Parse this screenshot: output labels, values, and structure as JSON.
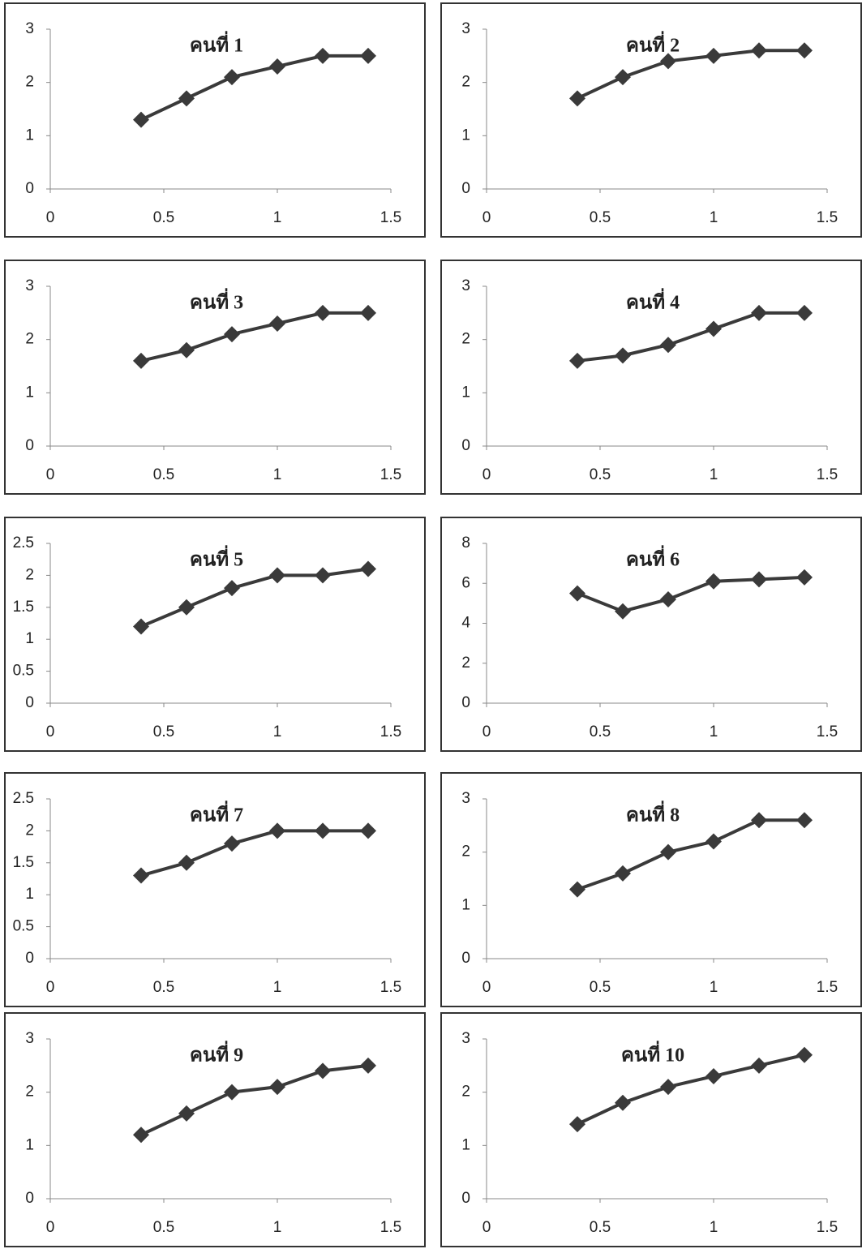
{
  "chart_data": [
    {
      "type": "line",
      "title": "คนที่ 1",
      "x": [
        0.4,
        0.6,
        0.8,
        1,
        1.2,
        1.4
      ],
      "values": [
        1.3,
        1.7,
        2.1,
        2.3,
        2.5,
        2.5
      ],
      "color": "#3a3a3a",
      "xlim": [
        0,
        1.5
      ],
      "xticks": [
        0,
        0.5,
        1,
        1.5
      ],
      "ylim": [
        0,
        3
      ],
      "yticks": [
        0,
        1,
        2,
        3
      ]
    },
    {
      "type": "line",
      "title": "คนที่ 2",
      "x": [
        0.4,
        0.6,
        0.8,
        1,
        1.2,
        1.4
      ],
      "values": [
        1.7,
        2.1,
        2.4,
        2.5,
        2.6,
        2.6
      ],
      "color": "#3a3a3a",
      "xlim": [
        0,
        1.5
      ],
      "xticks": [
        0,
        0.5,
        1,
        1.5
      ],
      "ylim": [
        0,
        3
      ],
      "yticks": [
        0,
        1,
        2,
        3
      ]
    },
    {
      "type": "line",
      "title": "คนที่ 3",
      "x": [
        0.4,
        0.6,
        0.8,
        1,
        1.2,
        1.4
      ],
      "values": [
        1.6,
        1.8,
        2.1,
        2.3,
        2.5,
        2.5
      ],
      "color": "#3a3a3a",
      "xlim": [
        0,
        1.5
      ],
      "xticks": [
        0,
        0.5,
        1,
        1.5
      ],
      "ylim": [
        0,
        3
      ],
      "yticks": [
        0,
        1,
        2,
        3
      ]
    },
    {
      "type": "line",
      "title": "คนที่ 4",
      "x": [
        0.4,
        0.6,
        0.8,
        1,
        1.2,
        1.4
      ],
      "values": [
        1.6,
        1.7,
        1.9,
        2.2,
        2.5,
        2.5
      ],
      "color": "#3a3a3a",
      "xlim": [
        0,
        1.5
      ],
      "xticks": [
        0,
        0.5,
        1,
        1.5
      ],
      "ylim": [
        0,
        3
      ],
      "yticks": [
        0,
        1,
        2,
        3
      ]
    },
    {
      "type": "line",
      "title": "คนที่ 5",
      "x": [
        0.4,
        0.6,
        0.8,
        1,
        1.2,
        1.4
      ],
      "values": [
        1.2,
        1.5,
        1.8,
        2.0,
        2.0,
        2.1
      ],
      "color": "#3a3a3a",
      "xlim": [
        0,
        1.5
      ],
      "xticks": [
        0,
        0.5,
        1,
        1.5
      ],
      "ylim": [
        0,
        2.5
      ],
      "yticks": [
        0,
        0.5,
        1,
        1.5,
        2,
        2.5
      ]
    },
    {
      "type": "line",
      "title": "คนที่ 6",
      "x": [
        0.4,
        0.6,
        0.8,
        1,
        1.2,
        1.4
      ],
      "values": [
        5.5,
        4.6,
        5.2,
        6.1,
        6.2,
        6.3
      ],
      "color": "#3a3a3a",
      "xlim": [
        0,
        1.5
      ],
      "xticks": [
        0,
        0.5,
        1,
        1.5
      ],
      "ylim": [
        0,
        8
      ],
      "yticks": [
        0,
        2,
        4,
        6,
        8
      ]
    },
    {
      "type": "line",
      "title": "คนที่ 7",
      "x": [
        0.4,
        0.6,
        0.8,
        1,
        1.2,
        1.4
      ],
      "values": [
        1.3,
        1.5,
        1.8,
        2.0,
        2.0,
        2.0
      ],
      "color": "#3a3a3a",
      "xlim": [
        0,
        1.5
      ],
      "xticks": [
        0,
        0.5,
        1,
        1.5
      ],
      "ylim": [
        0,
        2.5
      ],
      "yticks": [
        0,
        0.5,
        1,
        1.5,
        2,
        2.5
      ]
    },
    {
      "type": "line",
      "title": "คนที่ 8",
      "x": [
        0.4,
        0.6,
        0.8,
        1,
        1.2,
        1.4
      ],
      "values": [
        1.3,
        1.6,
        2.0,
        2.2,
        2.6,
        2.6
      ],
      "color": "#3a3a3a",
      "xlim": [
        0,
        1.5
      ],
      "xticks": [
        0,
        0.5,
        1,
        1.5
      ],
      "ylim": [
        0,
        3
      ],
      "yticks": [
        0,
        1,
        2,
        3
      ]
    },
    {
      "type": "line",
      "title": "คนที่ 9",
      "x": [
        0.4,
        0.6,
        0.8,
        1,
        1.2,
        1.4
      ],
      "values": [
        1.2,
        1.6,
        2.0,
        2.1,
        2.4,
        2.5
      ],
      "color": "#3a3a3a",
      "xlim": [
        0,
        1.5
      ],
      "xticks": [
        0,
        0.5,
        1,
        1.5
      ],
      "ylim": [
        0,
        3
      ],
      "yticks": [
        0,
        1,
        2,
        3
      ]
    },
    {
      "type": "line",
      "title": "คนที่ 10",
      "x": [
        0.4,
        0.6,
        0.8,
        1,
        1.2,
        1.4
      ],
      "values": [
        1.4,
        1.8,
        2.1,
        2.3,
        2.5,
        2.7
      ],
      "color": "#3a3a3a",
      "xlim": [
        0,
        1.5
      ],
      "xticks": [
        0,
        0.5,
        1,
        1.5
      ],
      "ylim": [
        0,
        3
      ],
      "yticks": [
        0,
        1,
        2,
        3
      ]
    }
  ]
}
